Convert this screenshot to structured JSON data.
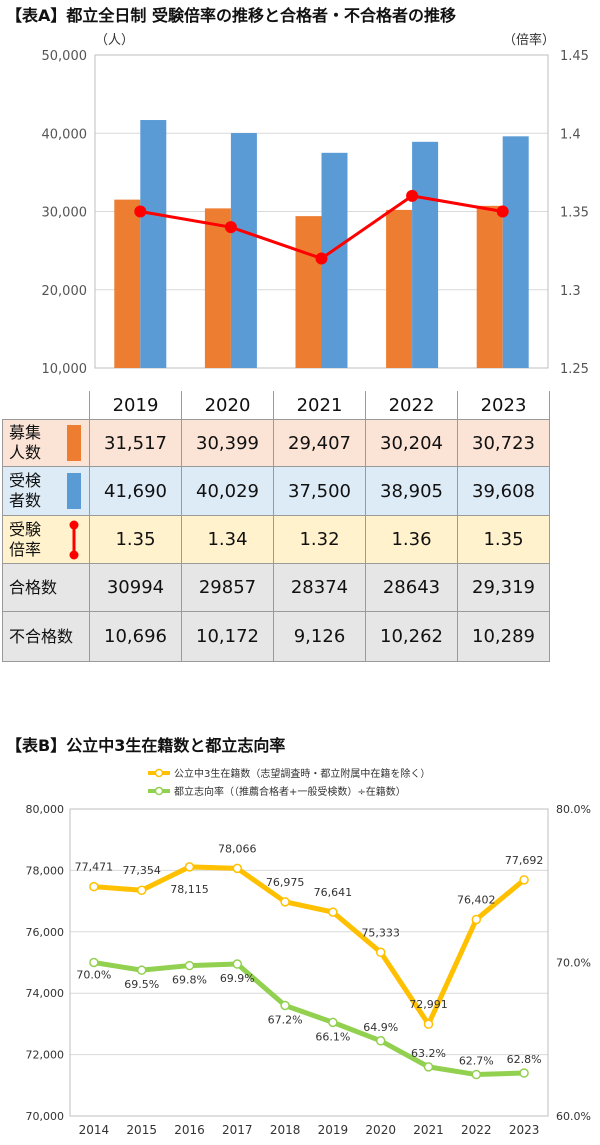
{
  "chart_a": {
    "title": "【表A】都立全日制 受験倍率の推移と合格者・不合格者の推移",
    "unit_left": "（人）",
    "unit_right": "（倍率）",
    "y_left_ticks": [
      "50,000",
      "40,000",
      "30,000",
      "20,000",
      "10,000"
    ],
    "y_right_ticks": [
      "1.45",
      "1.4",
      "1.35",
      "1.3",
      "1.25"
    ],
    "table": {
      "years": [
        "2019",
        "2020",
        "2021",
        "2022",
        "2023"
      ],
      "rows": [
        {
          "label1": "募集",
          "label2": "人数",
          "values": [
            "31,517",
            "30,399",
            "29,407",
            "30,204",
            "30,723"
          ]
        },
        {
          "label1": "受検",
          "label2": "者数",
          "values": [
            "41,690",
            "40,029",
            "37,500",
            "38,905",
            "39,608"
          ]
        },
        {
          "label1": "受験",
          "label2": "倍率",
          "values": [
            "1.35",
            "1.34",
            "1.32",
            "1.36",
            "1.35"
          ]
        },
        {
          "label1": "合格数",
          "label2": "",
          "values": [
            "30994",
            "29857",
            "28374",
            "28643",
            "29,319"
          ]
        },
        {
          "label1": "不合格数",
          "label2": "",
          "values": [
            "10,696",
            "10,172",
            "9,126",
            "10,262",
            "10,289"
          ]
        }
      ]
    }
  },
  "chart_b": {
    "title": "【表B】公立中3生在籍数と都立志向率",
    "legend_1": "公立中3生在籍数（志望調査時・都立附属中在籍を除く）",
    "legend_2": "都立志向率（（推薦合格者+一般受検数）÷在籍数）",
    "y_left_ticks": [
      "80,000",
      "78,000",
      "76,000",
      "74,000",
      "72,000",
      "70,000"
    ],
    "y_right_ticks": [
      "80.0%",
      "70.0%",
      "60.0%"
    ],
    "enrollment_labels": [
      "77,471",
      "77,354",
      "78,115",
      "78,066",
      "76,975",
      "76,641",
      "75,333",
      "72,991",
      "76,402",
      "77,692"
    ],
    "rate_labels": [
      "70.0%",
      "69.5%",
      "69.8%",
      "69.9%",
      "67.2%",
      "66.1%",
      "64.9%",
      "63.2%",
      "62.7%",
      "62.8%"
    ]
  },
  "chart_data": [
    {
      "type": "bar",
      "categories": [
        "2019",
        "2020",
        "2021",
        "2022",
        "2023"
      ],
      "series": [
        {
          "name": "募集人数",
          "kind": "bar",
          "axis": "left",
          "color": "#ed7d31",
          "values": [
            31517,
            30399,
            29407,
            30204,
            30723
          ]
        },
        {
          "name": "受検者数",
          "kind": "bar",
          "axis": "left",
          "color": "#5b9bd5",
          "values": [
            41690,
            40029,
            37500,
            38905,
            39608
          ]
        },
        {
          "name": "受験倍率",
          "kind": "line",
          "axis": "right",
          "color": "#ff0000",
          "values": [
            1.35,
            1.34,
            1.32,
            1.36,
            1.35
          ]
        }
      ],
      "ylim": [
        10000,
        50000
      ],
      "y2lim": [
        1.25,
        1.45
      ],
      "grid": true
    },
    {
      "type": "line",
      "categories": [
        "2014",
        "2015",
        "2016",
        "2017",
        "2018",
        "2019",
        "2020",
        "2021",
        "2022",
        "2023"
      ],
      "series": [
        {
          "name": "公立中3生在籍数",
          "axis": "left",
          "color": "#ffc000",
          "values": [
            77471,
            77354,
            78115,
            78066,
            76975,
            76641,
            75333,
            72991,
            76402,
            77692
          ]
        },
        {
          "name": "都立志向率",
          "axis": "right",
          "color": "#92d050",
          "values": [
            70.0,
            69.5,
            69.8,
            69.9,
            67.2,
            66.1,
            64.9,
            63.2,
            62.7,
            62.8
          ]
        }
      ],
      "ylim": [
        70000,
        80000
      ],
      "y2lim": [
        60.0,
        80.0
      ],
      "grid": true,
      "legend": "top"
    }
  ]
}
